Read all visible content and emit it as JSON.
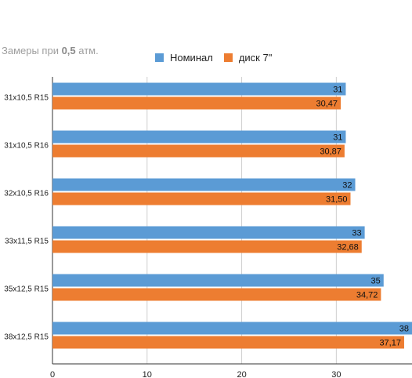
{
  "subtitle": {
    "prefix": "Замеры при ",
    "value": "0,5",
    "suffix": " атм."
  },
  "legend": [
    {
      "name": "Номинал",
      "color": "#5b9bd5"
    },
    {
      "name": "диск 7\"",
      "color": "#ed7d31"
    }
  ],
  "chart_data": {
    "type": "bar",
    "orientation": "horizontal",
    "categories": [
      "31x10,5 R15",
      "31x10,5 R16",
      "32x10,5 R16",
      "33x11,5 R15",
      "35x12,5 R15",
      "38x12,5 R15"
    ],
    "series": [
      {
        "name": "Номинал",
        "color": "#5b9bd5",
        "values": [
          31,
          31,
          32,
          33,
          35,
          38
        ],
        "labels": [
          "31",
          "31",
          "32",
          "33",
          "35",
          "38"
        ]
      },
      {
        "name": "диск 7\"",
        "color": "#ed7d31",
        "values": [
          30.47,
          30.87,
          31.5,
          32.68,
          34.72,
          37.17
        ],
        "labels": [
          "30,47",
          "30,87",
          "31,50",
          "32,68",
          "34,72",
          "37,17"
        ]
      }
    ],
    "xlim": [
      0,
      38
    ],
    "xticks": [
      0,
      10,
      20,
      30
    ],
    "xtick_labels": [
      "0",
      "10",
      "20",
      "30"
    ],
    "grid": true,
    "legend_position": "top"
  }
}
